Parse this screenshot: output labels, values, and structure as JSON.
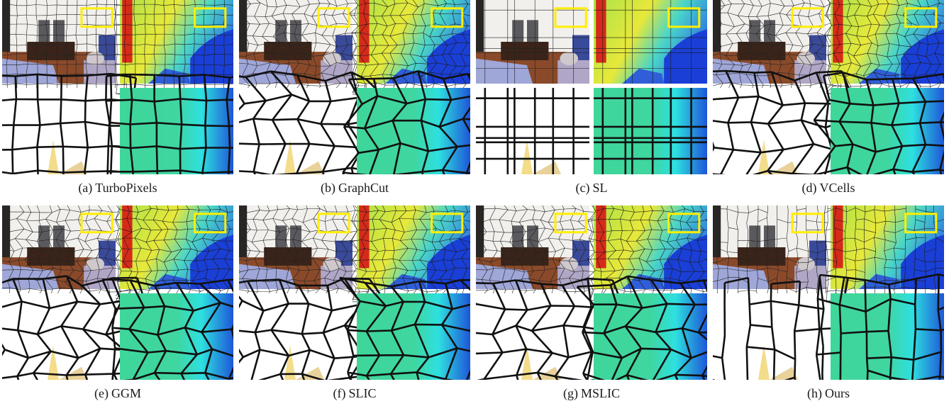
{
  "figure": {
    "panels": [
      {
        "tag": "(a)",
        "name": "TurboPixels"
      },
      {
        "tag": "(b)",
        "name": "GraphCut"
      },
      {
        "tag": "(c)",
        "name": "SL"
      },
      {
        "tag": "(d)",
        "name": "VCells"
      },
      {
        "tag": "(e)",
        "name": "GGM"
      },
      {
        "tag": "(f)",
        "name": "SLIC"
      },
      {
        "tag": "(g)",
        "name": "MSLIC"
      },
      {
        "tag": "(h)",
        "name": "Ours"
      }
    ],
    "colors": {
      "highlight_box": "#ffee00",
      "boundary": "#111111",
      "depth_near": "#1a3fd6",
      "depth_mid": "#3fd6a0",
      "depth_far": "#e8e83a",
      "depth_red": "#d62a1a"
    }
  }
}
